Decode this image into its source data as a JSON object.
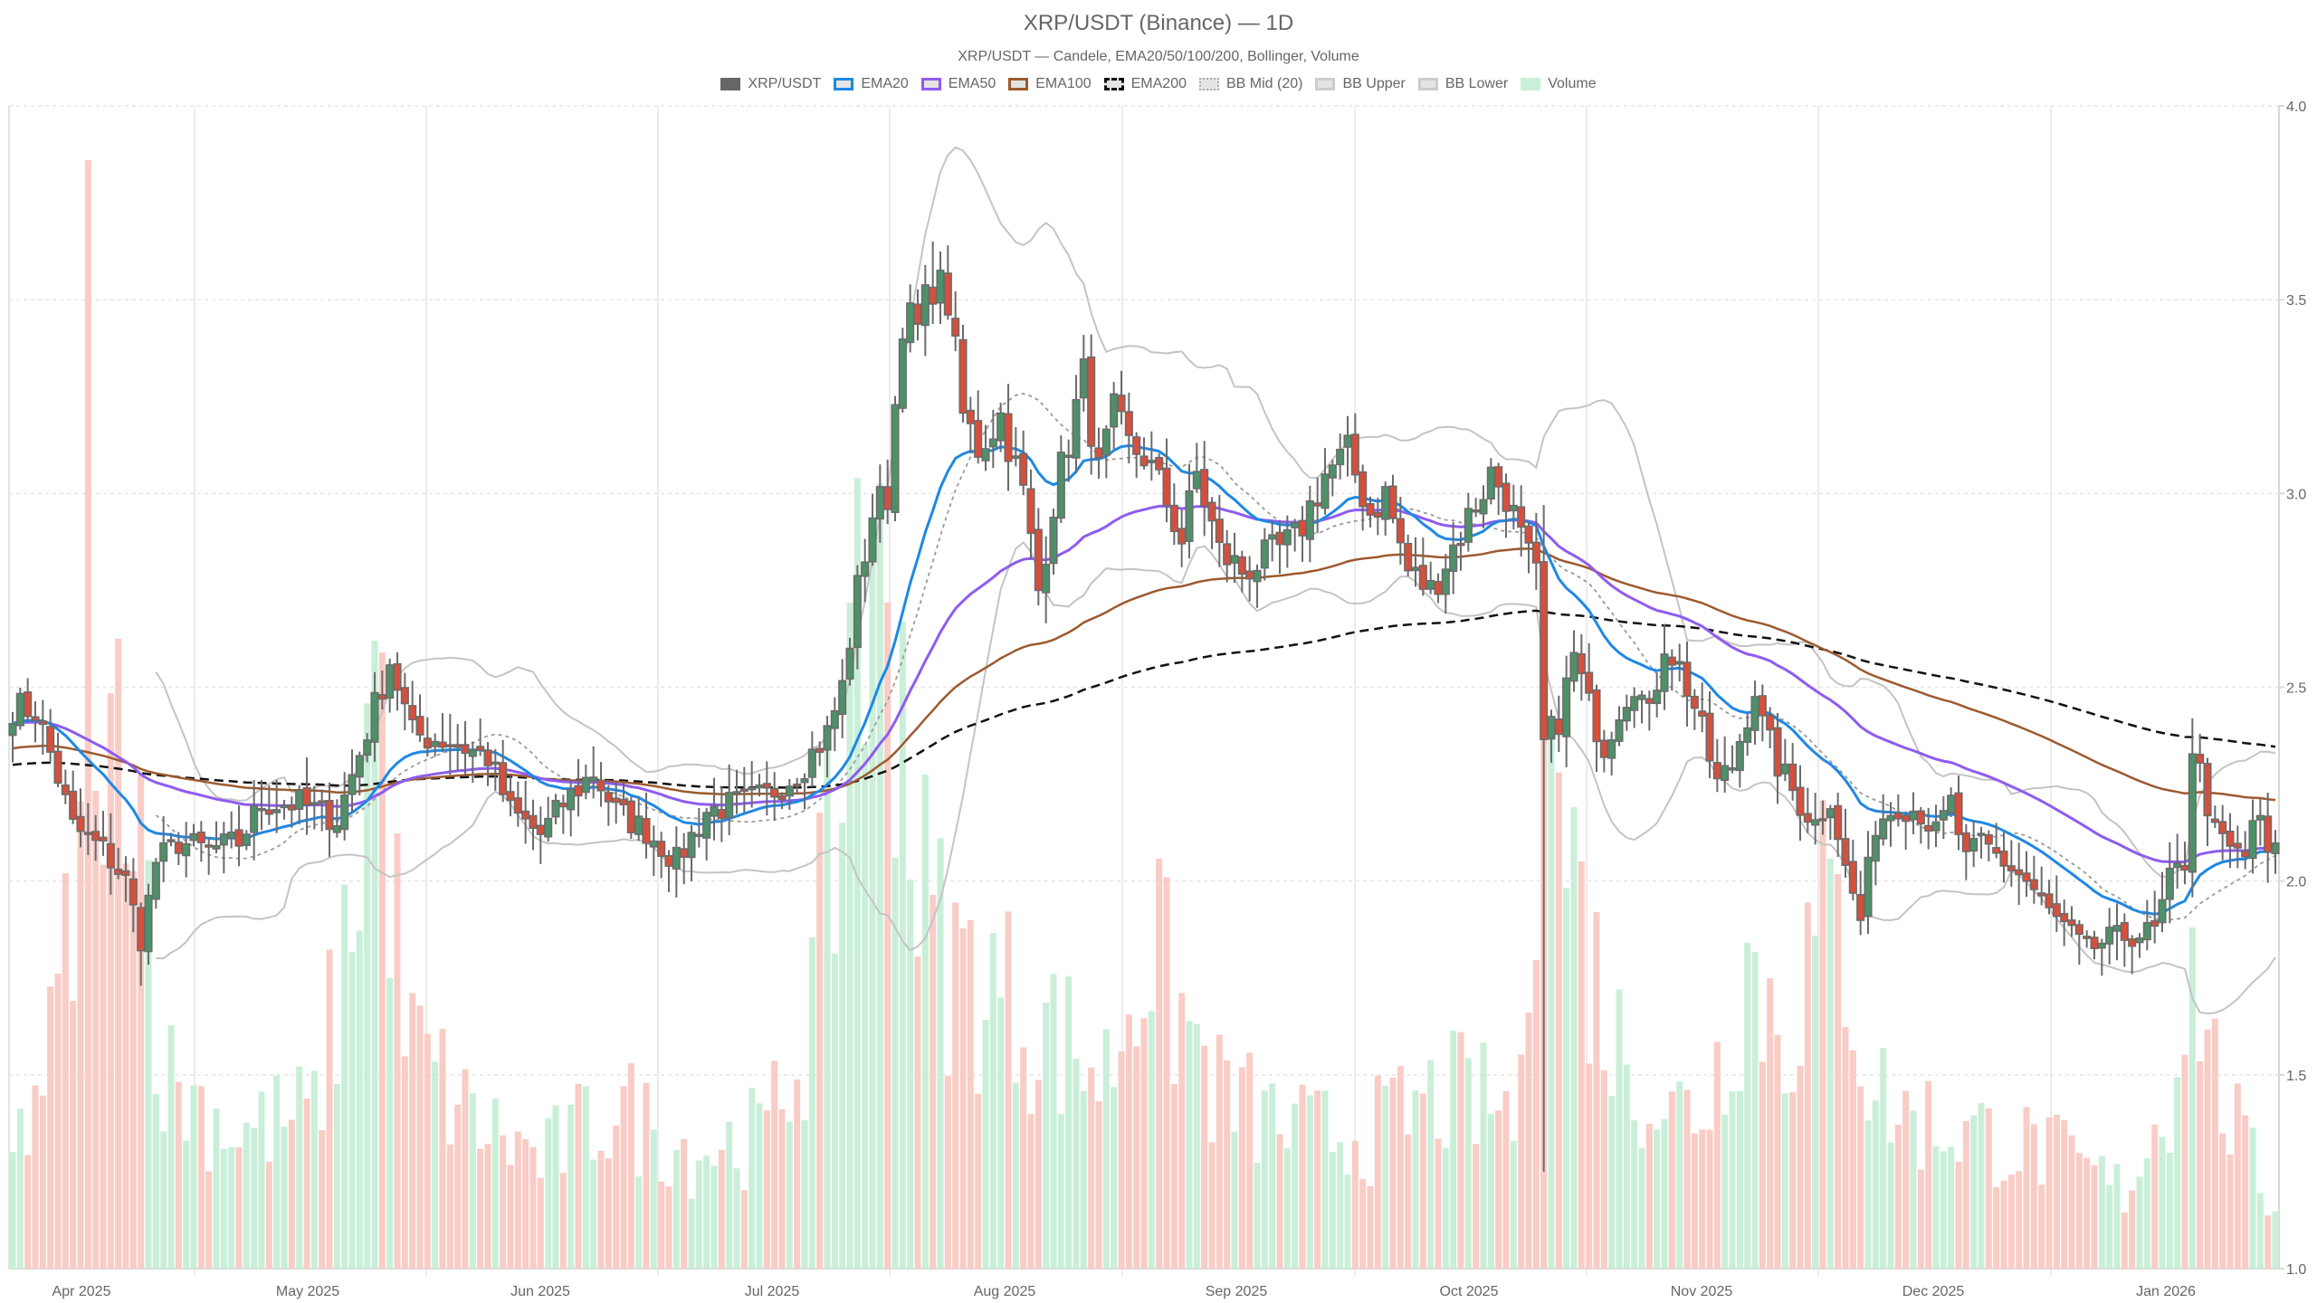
{
  "header": {
    "title": "XRP/USDT (Binance) — 1D",
    "subtitle": "XRP/USDT — Candele, EMA20/50/100/200, Bollinger, Volume"
  },
  "legend": [
    {
      "label": "XRP/USDT",
      "style": "solid",
      "fill": "#666666",
      "border": "#666666"
    },
    {
      "label": "EMA20",
      "style": "outline",
      "fill": "#e4e4e4",
      "border": "#1e88e5"
    },
    {
      "label": "EMA50",
      "style": "outline",
      "fill": "#e4e4e4",
      "border": "#8e5cf0"
    },
    {
      "label": "EMA100",
      "style": "outline",
      "fill": "#e4e4e4",
      "border": "#9c5a2e"
    },
    {
      "label": "EMA200",
      "style": "dashed",
      "fill": "#e4e4e4",
      "border": "#111111"
    },
    {
      "label": "BB Mid (20)",
      "style": "dotted",
      "fill": "#e4e4e4",
      "border": "#aaaaaa"
    },
    {
      "label": "BB Upper",
      "style": "outline",
      "fill": "#e4e4e4",
      "border": "#cccccc"
    },
    {
      "label": "BB Lower",
      "style": "outline",
      "fill": "#e4e4e4",
      "border": "#cccccc"
    },
    {
      "label": "Volume",
      "style": "solid",
      "fill": "#c8f0d8",
      "border": "#c8f0d8"
    }
  ],
  "colors": {
    "up": "#4e9168",
    "down": "#d4503c",
    "wick": "#6b6b6b",
    "vol_up": "#c9efd9",
    "vol_down": "#f9ccc6",
    "ema20": "#1e88e5",
    "ema50": "#8e5cf0",
    "ema100": "#9c5a2e",
    "ema200": "#111111",
    "bb_mid": "#9a9a9a",
    "bb_band": "#c4c4c4",
    "grid": "#e6e6e6"
  },
  "chart_data": {
    "type": "candlestick",
    "title": "XRP/USDT (Binance) — 1D",
    "subtitle": "XRP/USDT — Candele, EMA20/50/100/200, Bollinger, Volume",
    "xlabel": "",
    "ylabel": "",
    "ylim": [
      1.0,
      4.0
    ],
    "y_ticks": [
      1.0,
      1.5,
      2.0,
      2.5,
      3.0,
      3.5,
      4.0
    ],
    "y_axis_position": "right",
    "x_ticks": [
      "Apr 2025",
      "May 2025",
      "Jun 2025",
      "Jul 2025",
      "Aug 2025",
      "Sep 2025",
      "Oct 2025",
      "Nov 2025",
      "Dec 2025",
      "Jan 2026"
    ],
    "grid": true,
    "legend_position": "top",
    "series_names": [
      "XRP/USDT",
      "EMA20",
      "EMA50",
      "EMA100",
      "EMA200",
      "BB Mid (20)",
      "BB Upper",
      "BB Lower",
      "Volume"
    ],
    "start_date": "2025-03-23",
    "close_waypoints": [
      [
        0,
        2.45
      ],
      [
        3,
        2.44
      ],
      [
        5,
        2.33
      ],
      [
        8,
        2.14
      ],
      [
        12,
        2.08
      ],
      [
        15,
        2.0
      ],
      [
        17,
        1.85
      ],
      [
        19,
        2.05
      ],
      [
        22,
        2.1
      ],
      [
        26,
        2.08
      ],
      [
        30,
        2.1
      ],
      [
        33,
        2.2
      ],
      [
        38,
        2.2
      ],
      [
        43,
        2.16
      ],
      [
        46,
        2.33
      ],
      [
        50,
        2.57
      ],
      [
        53,
        2.38
      ],
      [
        58,
        2.36
      ],
      [
        63,
        2.32
      ],
      [
        66,
        2.18
      ],
      [
        70,
        2.12
      ],
      [
        73,
        2.2
      ],
      [
        77,
        2.28
      ],
      [
        80,
        2.18
      ],
      [
        84,
        2.13
      ],
      [
        88,
        2.05
      ],
      [
        92,
        2.18
      ],
      [
        96,
        2.2
      ],
      [
        100,
        2.22
      ],
      [
        104,
        2.28
      ],
      [
        108,
        2.38
      ],
      [
        110,
        2.5
      ],
      [
        112,
        2.75
      ],
      [
        114,
        2.95
      ],
      [
        116,
        3.0
      ],
      [
        118,
        3.46
      ],
      [
        120,
        3.42
      ],
      [
        122,
        3.55
      ],
      [
        124,
        3.5
      ],
      [
        126,
        3.2
      ],
      [
        128,
        3.12
      ],
      [
        131,
        3.2
      ],
      [
        134,
        3.0
      ],
      [
        136,
        2.75
      ],
      [
        138,
        2.98
      ],
      [
        142,
        3.3
      ],
      [
        144,
        3.05
      ],
      [
        146,
        3.2
      ],
      [
        148,
        3.12
      ],
      [
        150,
        3.1
      ],
      [
        153,
        2.98
      ],
      [
        155,
        2.88
      ],
      [
        157,
        3.05
      ],
      [
        160,
        2.85
      ],
      [
        163,
        2.8
      ],
      [
        166,
        2.83
      ],
      [
        170,
        2.88
      ],
      [
        174,
        3.05
      ],
      [
        177,
        3.1
      ],
      [
        180,
        2.95
      ],
      [
        182,
        3.0
      ],
      [
        185,
        2.8
      ],
      [
        188,
        2.75
      ],
      [
        192,
        2.9
      ],
      [
        196,
        3.05
      ],
      [
        198,
        3.0
      ],
      [
        200,
        2.88
      ],
      [
        202,
        2.78
      ],
      [
        203,
        2.35
      ],
      [
        205,
        2.42
      ],
      [
        207,
        2.58
      ],
      [
        209,
        2.45
      ],
      [
        211,
        2.35
      ],
      [
        213,
        2.45
      ],
      [
        215,
        2.52
      ],
      [
        217,
        2.42
      ],
      [
        219,
        2.62
      ],
      [
        221,
        2.55
      ],
      [
        223,
        2.45
      ],
      [
        226,
        2.25
      ],
      [
        228,
        2.3
      ],
      [
        231,
        2.5
      ],
      [
        232,
        2.4
      ],
      [
        234,
        2.3
      ],
      [
        237,
        2.2
      ],
      [
        239,
        2.15
      ],
      [
        241,
        2.22
      ],
      [
        243,
        2.03
      ],
      [
        245,
        1.9
      ],
      [
        247,
        2.15
      ],
      [
        250,
        2.2
      ],
      [
        253,
        2.18
      ],
      [
        255,
        2.12
      ],
      [
        257,
        2.2
      ],
      [
        259,
        2.05
      ],
      [
        261,
        2.1
      ],
      [
        264,
        2.05
      ],
      [
        267,
        2.0
      ],
      [
        270,
        1.92
      ],
      [
        272,
        1.88
      ],
      [
        275,
        1.82
      ],
      [
        278,
        1.85
      ],
      [
        281,
        1.86
      ],
      [
        284,
        1.87
      ],
      [
        286,
        2.0
      ],
      [
        288,
        2.05
      ],
      [
        289,
        2.35
      ],
      [
        290,
        2.28
      ],
      [
        292,
        2.12
      ],
      [
        294,
        2.08
      ],
      [
        296,
        2.06
      ],
      [
        297,
        2.16
      ],
      [
        298,
        2.14
      ],
      [
        299,
        2.07
      ],
      [
        300,
        2.07
      ]
    ],
    "notable_wicks": [
      {
        "day": 122,
        "high": 3.65
      },
      {
        "day": 203,
        "low": 1.25,
        "high": 2.97
      },
      {
        "day": 17,
        "low": 1.73
      },
      {
        "day": 289,
        "high": 2.42
      }
    ],
    "volume_scale_note": "volume bars drawn as overlay in lower portion of plot, max ~ to 3.87 on price axis",
    "volume_waypoints": [
      [
        0,
        0.28
      ],
      [
        5,
        0.55
      ],
      [
        9,
        1.0
      ],
      [
        10,
        2.86
      ],
      [
        12,
        0.9
      ],
      [
        15,
        1.7
      ],
      [
        20,
        0.5
      ],
      [
        30,
        0.35
      ],
      [
        40,
        0.4
      ],
      [
        45,
        0.9
      ],
      [
        48,
        1.62
      ],
      [
        52,
        0.6
      ],
      [
        60,
        0.4
      ],
      [
        70,
        0.28
      ],
      [
        80,
        0.42
      ],
      [
        90,
        0.3
      ],
      [
        100,
        0.35
      ],
      [
        105,
        0.6
      ],
      [
        110,
        1.2
      ],
      [
        112,
        2.04
      ],
      [
        114,
        1.5
      ],
      [
        116,
        1.85
      ],
      [
        118,
        1.55
      ],
      [
        120,
        1.0
      ],
      [
        124,
        0.8
      ],
      [
        128,
        0.75
      ],
      [
        135,
        0.65
      ],
      [
        145,
        0.5
      ],
      [
        150,
        0.85
      ],
      [
        160,
        0.45
      ],
      [
        170,
        0.35
      ],
      [
        180,
        0.35
      ],
      [
        190,
        0.45
      ],
      [
        200,
        0.4
      ],
      [
        203,
        1.75
      ],
      [
        205,
        1.28
      ],
      [
        208,
        0.9
      ],
      [
        212,
        0.6
      ],
      [
        220,
        0.4
      ],
      [
        225,
        0.45
      ],
      [
        230,
        0.8
      ],
      [
        235,
        0.6
      ],
      [
        240,
        0.9
      ],
      [
        243,
        0.85
      ],
      [
        246,
        0.5
      ],
      [
        250,
        0.4
      ],
      [
        260,
        0.35
      ],
      [
        270,
        0.3
      ],
      [
        280,
        0.2
      ],
      [
        286,
        0.45
      ],
      [
        289,
        0.88
      ],
      [
        292,
        0.5
      ],
      [
        296,
        0.3
      ],
      [
        300,
        0.15
      ]
    ]
  },
  "axis": {
    "y_labels": [
      "1.0",
      "1.5",
      "2.0",
      "2.5",
      "3.0",
      "3.5",
      "4.0"
    ],
    "x_labels": [
      "Apr 2025",
      "May 2025",
      "Jun 2025",
      "Jul 2025",
      "Aug 2025",
      "Sep 2025",
      "Oct 2025",
      "Nov 2025",
      "Dec 2025",
      "Jan 2026"
    ]
  }
}
